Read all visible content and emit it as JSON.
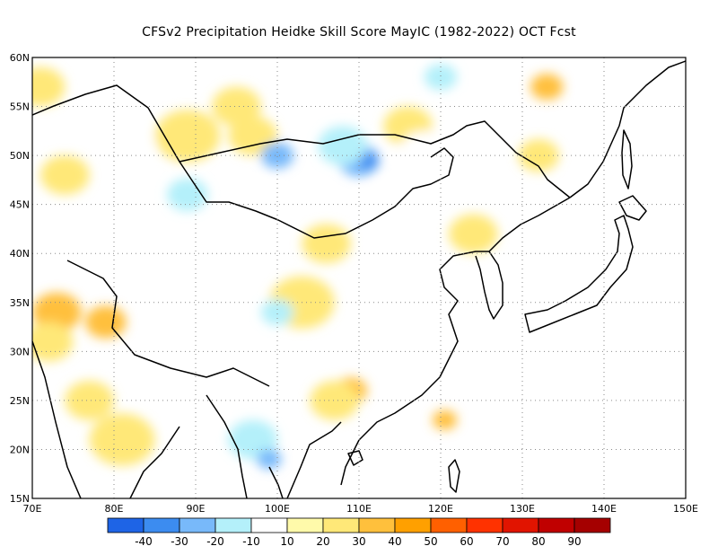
{
  "title": "CFSv2  Precipitation Heidke Skill Score MayIC (1982-2022) OCT Fcst",
  "map": {
    "extent": {
      "lon": [
        70,
        150
      ],
      "lat": [
        15,
        60
      ]
    },
    "lat_ticks": [
      {
        "value": 15,
        "label": "15N"
      },
      {
        "value": 20,
        "label": "20N"
      },
      {
        "value": 25,
        "label": "25N"
      },
      {
        "value": 30,
        "label": "30N"
      },
      {
        "value": 35,
        "label": "35N"
      },
      {
        "value": 40,
        "label": "40N"
      },
      {
        "value": 45,
        "label": "45N"
      },
      {
        "value": 50,
        "label": "50N"
      },
      {
        "value": 55,
        "label": "55N"
      },
      {
        "value": 60,
        "label": "60N"
      }
    ],
    "lon_ticks": [
      {
        "value": 70,
        "label": "70E"
      },
      {
        "value": 80,
        "label": "80E"
      },
      {
        "value": 90,
        "label": "90E"
      },
      {
        "value": 100,
        "label": "100E"
      },
      {
        "value": 110,
        "label": "110E"
      },
      {
        "value": 120,
        "label": "120E"
      },
      {
        "value": 130,
        "label": "130E"
      },
      {
        "value": 140,
        "label": "140E"
      },
      {
        "value": 150,
        "label": "150E"
      }
    ],
    "gridlines": "dotted",
    "field": [
      {
        "lon": 71,
        "lat": 57,
        "hss": 20,
        "r": 3
      },
      {
        "lon": 74,
        "lat": 48,
        "hss": 20,
        "r": 3
      },
      {
        "lon": 73,
        "lat": 34,
        "hss": 30,
        "r": 3
      },
      {
        "lon": 72,
        "lat": 31,
        "hss": 20,
        "r": 3
      },
      {
        "lon": 79,
        "lat": 33,
        "hss": 30,
        "r": 2.5
      },
      {
        "lon": 80.5,
        "lat": 20,
        "hss": 40,
        "r": 2
      },
      {
        "lon": 81,
        "lat": 21,
        "hss": 20,
        "r": 4
      },
      {
        "lon": 77,
        "lat": 25,
        "hss": 20,
        "r": 3
      },
      {
        "lon": 89,
        "lat": 52,
        "hss": 20,
        "r": 4
      },
      {
        "lon": 95,
        "lat": 55,
        "hss": 20,
        "r": 3
      },
      {
        "lon": 97,
        "lat": 52,
        "hss": 20,
        "r": 3
      },
      {
        "lon": 103,
        "lat": 35,
        "hss": 20,
        "r": 4
      },
      {
        "lon": 106,
        "lat": 41,
        "hss": 20,
        "r": 3
      },
      {
        "lon": 109,
        "lat": 26,
        "hss": 30,
        "r": 2
      },
      {
        "lon": 107,
        "lat": 25,
        "hss": 20,
        "r": 3
      },
      {
        "lon": 116,
        "lat": 53,
        "hss": 20,
        "r": 3
      },
      {
        "lon": 124,
        "lat": 42,
        "hss": 20,
        "r": 3
      },
      {
        "lon": 132,
        "lat": 50,
        "hss": 20,
        "r": 2.5
      },
      {
        "lon": 133,
        "lat": 57,
        "hss": 30,
        "r": 2
      },
      {
        "lon": 120.5,
        "lat": 23,
        "hss": 30,
        "r": 1.5
      },
      {
        "lon": 98,
        "lat": 45,
        "hss": -10,
        "r": 3
      },
      {
        "lon": 89,
        "lat": 46,
        "hss": -20,
        "r": 2.5
      },
      {
        "lon": 100,
        "lat": 50,
        "hss": -30,
        "r": 2
      },
      {
        "lon": 110,
        "lat": 49.5,
        "hss": -30,
        "r": 2.5
      },
      {
        "lon": 111,
        "lat": 49.5,
        "hss": -40,
        "r": 1.3
      },
      {
        "lon": 108,
        "lat": 51,
        "hss": -20,
        "r": 3
      },
      {
        "lon": 118,
        "lat": 50.5,
        "hss": -10,
        "r": 3
      },
      {
        "lon": 120,
        "lat": 58,
        "hss": -20,
        "r": 2
      },
      {
        "lon": 104,
        "lat": 58.5,
        "hss": -10,
        "r": 3
      },
      {
        "lon": 97,
        "lat": 21,
        "hss": -20,
        "r": 3
      },
      {
        "lon": 99,
        "lat": 19,
        "hss": -30,
        "r": 1.5
      },
      {
        "lon": 90,
        "lat": 24,
        "hss": -10,
        "r": 3
      },
      {
        "lon": 100,
        "lat": 34,
        "hss": -20,
        "r": 2
      },
      {
        "lon": 93,
        "lat": 28,
        "hss": -10,
        "r": 2
      },
      {
        "lon": 113,
        "lat": 45,
        "hss": -10,
        "r": 3
      },
      {
        "lon": 83,
        "lat": 51,
        "hss": -10,
        "r": 2
      }
    ]
  },
  "colorbar": {
    "boundaries": [
      -50,
      -40,
      -30,
      -20,
      -10,
      10,
      20,
      30,
      40,
      50,
      60,
      70,
      80,
      90,
      100
    ],
    "labels": [
      "-40",
      "-30",
      "-20",
      "-10",
      "10",
      "20",
      "30",
      "40",
      "50",
      "60",
      "70",
      "80",
      "90"
    ],
    "colors": [
      "#1e64e6",
      "#3c8cf0",
      "#78b9fa",
      "#b4f0fa",
      "#ffffff",
      "#fffaaa",
      "#ffe878",
      "#ffc03c",
      "#ffa000",
      "#ff6000",
      "#ff3200",
      "#e11400",
      "#c00000",
      "#a50000"
    ]
  }
}
